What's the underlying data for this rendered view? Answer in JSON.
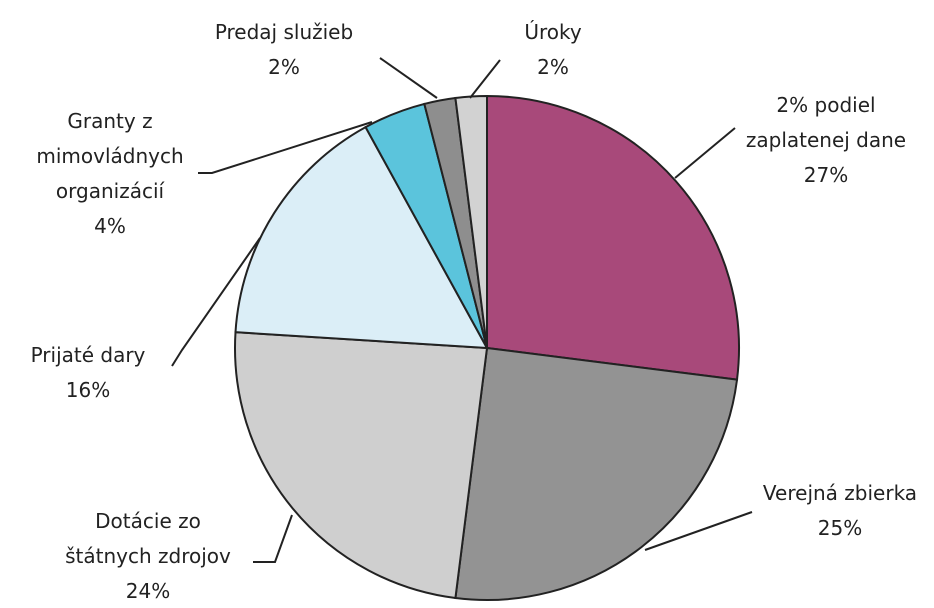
{
  "chart_data": {
    "type": "pie",
    "categories": [
      "2% podiel zaplatenej dane",
      "Verejná zbierka",
      "Dotácie zo štátnych zdrojov",
      "Prijaté dary",
      "Granty z mimovládnych organizácií",
      "Predaj služieb",
      "Úroky"
    ],
    "values": [
      27,
      25,
      24,
      16,
      4,
      2,
      2
    ],
    "value_labels": [
      "27%",
      "25%",
      "24%",
      "16%",
      "4%",
      "2%",
      "2%"
    ],
    "colors": [
      "#a8497a",
      "#939393",
      "#cfcfcf",
      "#dbeef7",
      "#5bc4dc",
      "#8e8e8e",
      "#d2d2d2"
    ]
  }
}
